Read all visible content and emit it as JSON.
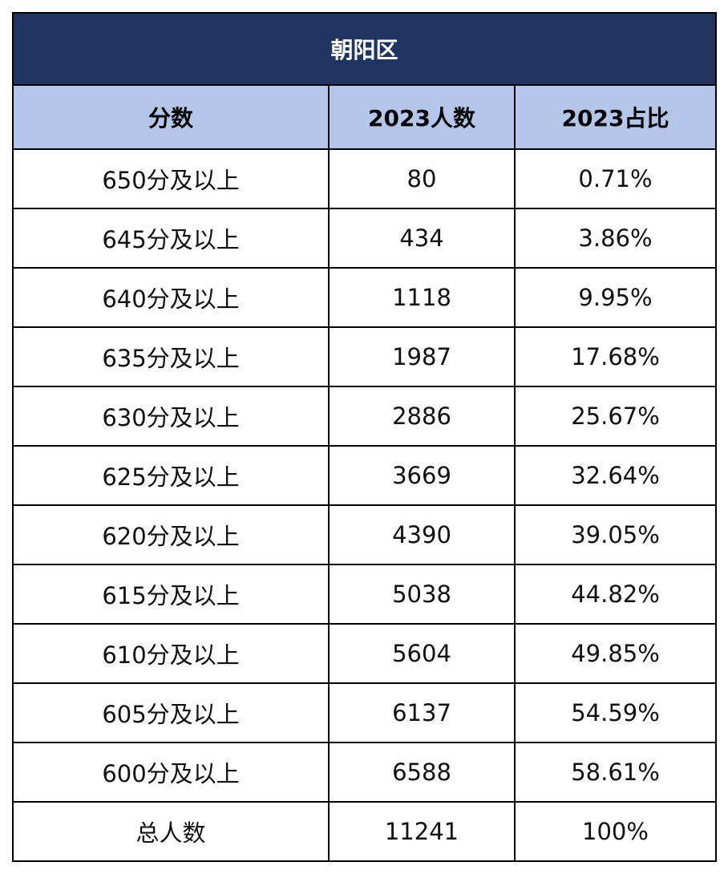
{
  "table": {
    "title": "朝阳区",
    "headers": [
      "分数",
      "2023人数",
      "2023占比"
    ],
    "rows": [
      [
        "650分及以上",
        "80",
        "0.71%"
      ],
      [
        "645分及以上",
        "434",
        "3.86%"
      ],
      [
        "640分及以上",
        "1118",
        "9.95%"
      ],
      [
        "635分及以上",
        "1987",
        "17.68%"
      ],
      [
        "630分及以上",
        "2886",
        "25.67%"
      ],
      [
        "625分及以上",
        "3669",
        "32.64%"
      ],
      [
        "620分及以上",
        "4390",
        "39.05%"
      ],
      [
        "615分及以上",
        "5038",
        "44.82%"
      ],
      [
        "610分及以上",
        "5604",
        "49.85%"
      ],
      [
        "605分及以上",
        "6137",
        "54.59%"
      ],
      [
        "600分及以上",
        "6588",
        "58.61%"
      ],
      [
        "总人数",
        "11241",
        "100%"
      ]
    ]
  },
  "colors": {
    "title_background": "#1f3460",
    "title_text": "#ffffff",
    "header_background": "#b4c6ea",
    "border": "#000000"
  }
}
